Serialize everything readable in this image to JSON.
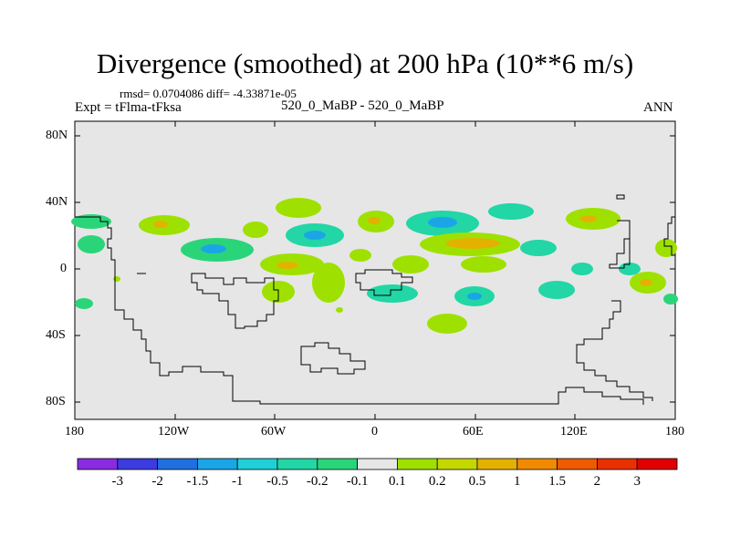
{
  "title": "Divergence (smoothed) at 200 hPa (10**6 m/s)",
  "stats": "rmsd= 0.0704086 diff= -4.33871e-05",
  "expt": "Expt = tFlma-tFksa",
  "case_label": "520_0_MaBP - 520_0_MaBP",
  "season": "ANN",
  "lat_labels": [
    "80N",
    "40N",
    "0",
    "40S",
    "80S"
  ],
  "lon_labels": [
    "180",
    "120W",
    "60W",
    "0",
    "60E",
    "120E",
    "180"
  ],
  "colorbar": {
    "labels": [
      "-3",
      "-2",
      "-1.5",
      "-1",
      "-0.5",
      "-0.2",
      "-0.1",
      "0.1",
      "0.2",
      "0.5",
      "1",
      "1.5",
      "2",
      "3"
    ],
    "colors": [
      "#8a2be2",
      "#3b3bdf",
      "#1f6fe0",
      "#1aa6e6",
      "#1fd0d8",
      "#22d6a6",
      "#2ad57a",
      "#e6e6e6",
      "#9ee100",
      "#c4d800",
      "#e3b200",
      "#f08a00",
      "#f05a00",
      "#e83000",
      "#e00000"
    ]
  },
  "colors": {
    "background": "#e6e6e6",
    "neg_weak": "#2ad57a",
    "neg_mid": "#22d6a6",
    "neg_strong": "#1aa6e6",
    "pos_weak": "#9ee100",
    "pos_mid": "#c4d800",
    "pos_strong": "#e3b200"
  }
}
